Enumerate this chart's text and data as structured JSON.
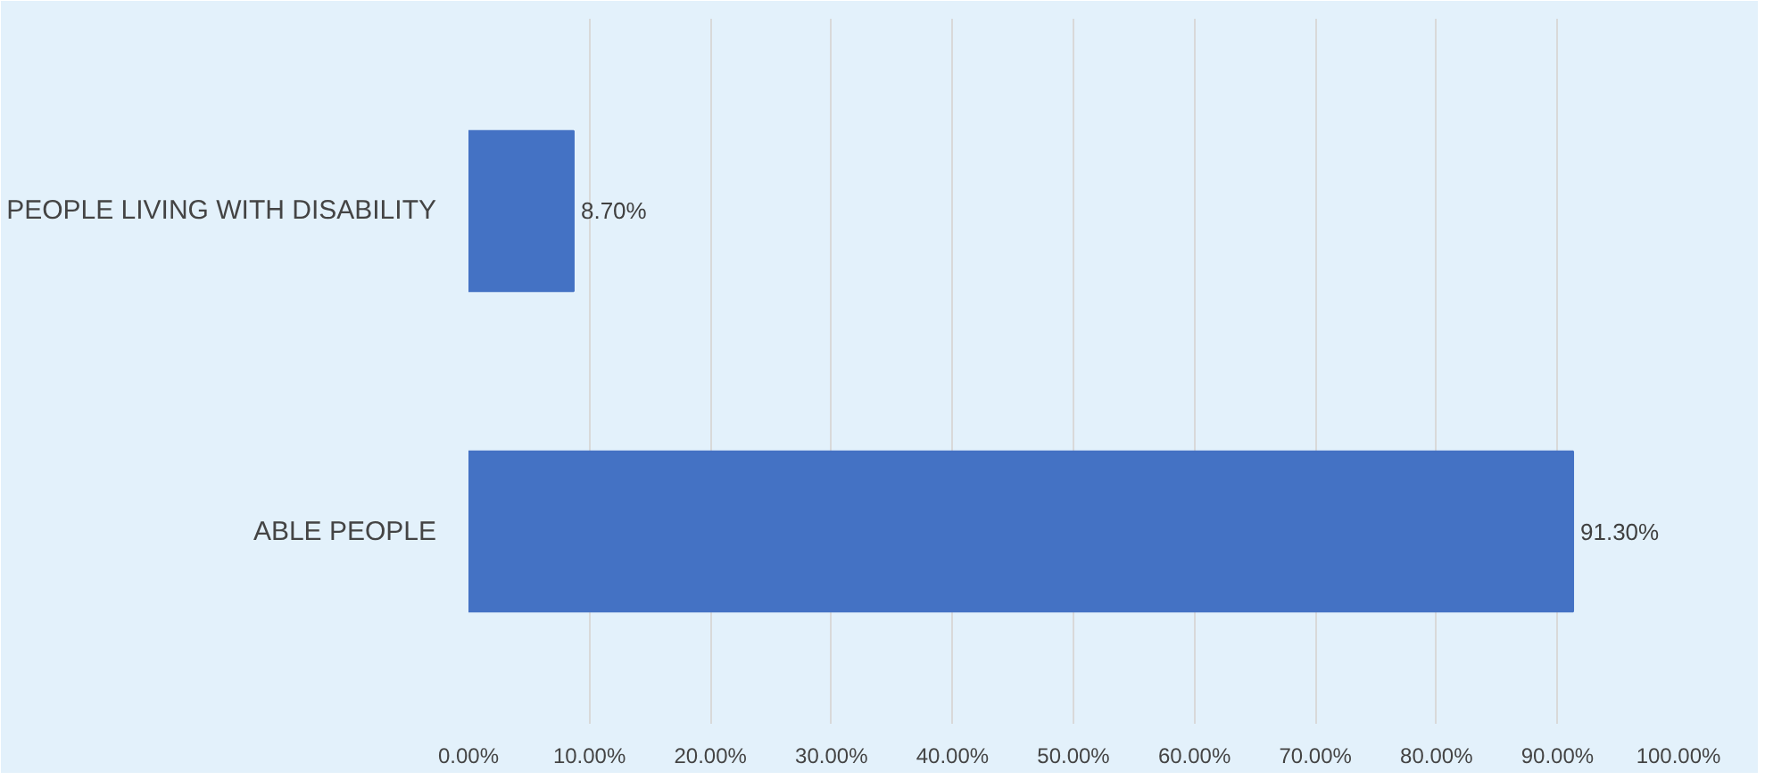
{
  "chart_data": {
    "type": "bar",
    "orientation": "horizontal",
    "categories": [
      "PEOPLE LIVING WITH DISABILITY",
      "ABLE PEOPLE"
    ],
    "values": [
      8.7,
      91.3
    ],
    "color": "#4472c4",
    "value_labels": [
      "8.70%",
      "91.30%"
    ],
    "xlim": [
      0,
      100
    ],
    "xticks": [
      {
        "value": 0,
        "label": "0.00%"
      },
      {
        "value": 10,
        "label": "10.00%"
      },
      {
        "value": 20,
        "label": "20.00%"
      },
      {
        "value": 30,
        "label": "30.00%"
      },
      {
        "value": 40,
        "label": "40.00%"
      },
      {
        "value": 50,
        "label": "50.00%"
      },
      {
        "value": 60,
        "label": "60.00%"
      },
      {
        "value": 70,
        "label": "70.00%"
      },
      {
        "value": 80,
        "label": "80.00%"
      },
      {
        "value": 90,
        "label": "90.00%"
      },
      {
        "value": 100,
        "label": "100.00%"
      }
    ],
    "grid": "x"
  }
}
